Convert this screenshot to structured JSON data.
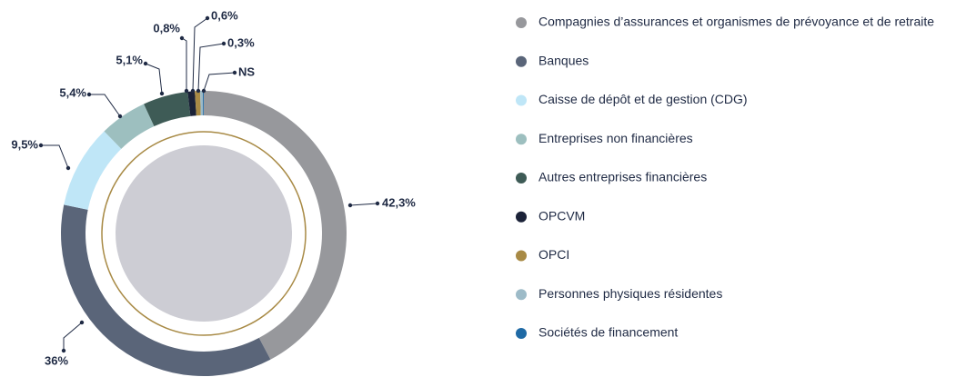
{
  "chart_data": {
    "type": "pie",
    "categories": [
      "Compagnies d’assurances et organismes de prévoyance et de retraite",
      "Banques",
      "Caisse de dépôt et de gestion (CDG)",
      "Entreprises non financières",
      "Autres entreprises financières",
      "OPCVM",
      "OPCI",
      "Personnes physiques résidentes",
      "Sociétés de financement"
    ],
    "values": [
      42.3,
      36,
      9.5,
      5.4,
      5.1,
      0.8,
      0.6,
      0.3,
      0.1
    ],
    "value_labels": [
      "42,3%",
      "36%",
      "9,5%",
      "5,4%",
      "5,1%",
      "0,8%",
      "0,6%",
      "0,3%",
      "NS"
    ],
    "colors": [
      "#97989c",
      "#5a6579",
      "#bfe6f7",
      "#9dbfbf",
      "#3e5b56",
      "#1b2238",
      "#a88a45",
      "#9dbbc8",
      "#1f6aa5"
    ]
  }
}
